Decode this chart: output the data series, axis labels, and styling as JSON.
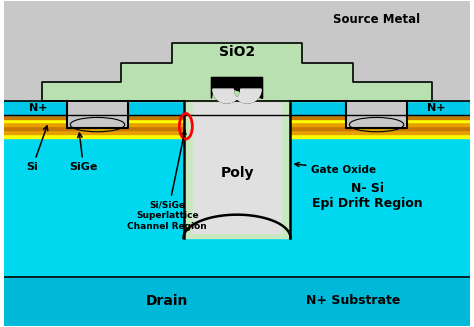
{
  "fig_width": 4.74,
  "fig_height": 3.27,
  "dpi": 100,
  "colors": {
    "source_metal_bg": "#c8c8c8",
    "sio2_block": "#b8e0b0",
    "n_plus_layer": "#00c8e8",
    "yellow_layer": "#ffff00",
    "orange_layer1": "#e8a000",
    "orange_layer2": "#c87800",
    "epi_drift": "#00d8f0",
    "substrate": "#00b8d8",
    "poly_fill": "#e0e0e0",
    "gate_oxide_color": "#c8e8c0",
    "contact_metal": "#d4a000",
    "black": "#000000",
    "red_ellipse": "#ff0000",
    "hatching_bg": "#c8c8c8"
  },
  "labels": {
    "source_metal": "Source Metal",
    "sio2": "SiO2",
    "poly": "Poly",
    "n_plus_left": "N+",
    "n_plus_right": "N+",
    "si": "Si",
    "sige": "SiGe",
    "sisige": "Si/SiGe\nSuperlattice\nChannel Region",
    "gate_oxide": "Gate Oxide",
    "n_si": "N- Si\nEpi Drift Region",
    "drain": "Drain",
    "substrate": "N+ Substrate"
  }
}
